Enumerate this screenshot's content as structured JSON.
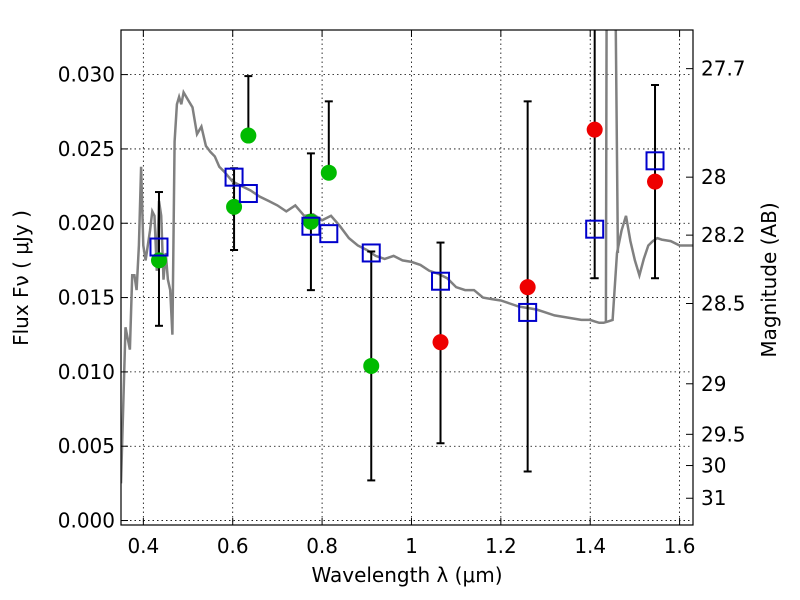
{
  "chart_data": {
    "type": "scatter",
    "xlabel": "Wavelength  λ (μm)",
    "ylabel": "Flux  Fν  ( μJy )",
    "y2label": "Magnitude (AB)",
    "xlim": [
      0.35,
      1.63
    ],
    "ylim": [
      -0.0003,
      0.033
    ],
    "grid": true,
    "x_ticks": [
      0.4,
      0.6,
      0.8,
      1.0,
      1.2,
      1.4,
      1.6
    ],
    "x_tick_labels": [
      "0.4",
      "0.6",
      "0.8",
      "1",
      "1.2",
      "1.4",
      "1.6"
    ],
    "y_ticks": [
      0.0,
      0.005,
      0.01,
      0.015,
      0.02,
      0.025,
      0.03
    ],
    "y_tick_labels": [
      "0.000",
      "0.005",
      "0.010",
      "0.015",
      "0.020",
      "0.025",
      "0.030"
    ],
    "right_ticks": [
      {
        "label": "27.7",
        "flux": 0.0304
      },
      {
        "label": "28",
        "flux": 0.0231
      },
      {
        "label": "28.2",
        "flux": 0.0192
      },
      {
        "label": "28.5",
        "flux": 0.0146
      },
      {
        "label": "29",
        "flux": 0.0092
      },
      {
        "label": "29.5",
        "flux": 0.0058
      },
      {
        "label": "30",
        "flux": 0.0037
      },
      {
        "label": "31",
        "flux": 0.0015
      }
    ],
    "colors": {
      "model": "#808080",
      "green_points": "#00bb00",
      "red_points": "#ee0000",
      "model_photometry": "#0000cc",
      "error_bars": "#000000"
    },
    "series": [
      {
        "kind": "line",
        "x": [
          0.35,
          0.36,
          0.37,
          0.375,
          0.38,
          0.385,
          0.39,
          0.395,
          0.4,
          0.405,
          0.41,
          0.415,
          0.42,
          0.425,
          0.43,
          0.435,
          0.44,
          0.445,
          0.45,
          0.455,
          0.46,
          0.465,
          0.47,
          0.475,
          0.48,
          0.485,
          0.49,
          0.5,
          0.51,
          0.52,
          0.53,
          0.54,
          0.55,
          0.56,
          0.57,
          0.58,
          0.6,
          0.62,
          0.64,
          0.66,
          0.68,
          0.7,
          0.72,
          0.74,
          0.76,
          0.78,
          0.8,
          0.82,
          0.84,
          0.86,
          0.88,
          0.9,
          0.92,
          0.94,
          0.96,
          0.98,
          1.0,
          1.02,
          1.04,
          1.06,
          1.08,
          1.1,
          1.12,
          1.14,
          1.16,
          1.18,
          1.2,
          1.22,
          1.24,
          1.26,
          1.28,
          1.3,
          1.32,
          1.34,
          1.36,
          1.38,
          1.4,
          1.41,
          1.42,
          1.43,
          1.44,
          1.45,
          1.46,
          1.47,
          1.48,
          1.49,
          1.5,
          1.51,
          1.52,
          1.53,
          1.54,
          1.55,
          1.56,
          1.58,
          1.6,
          1.63
        ],
        "y": [
          0.0025,
          0.013,
          0.0115,
          0.0165,
          0.0165,
          0.0155,
          0.0185,
          0.0238,
          0.0185,
          0.0175,
          0.0185,
          0.0195,
          0.0208,
          0.0205,
          0.0168,
          0.0215,
          0.0205,
          0.0162,
          0.018,
          0.0162,
          0.0155,
          0.0125,
          0.0255,
          0.028,
          0.0285,
          0.028,
          0.0288,
          0.0283,
          0.0278,
          0.026,
          0.0265,
          0.0252,
          0.0248,
          0.0245,
          0.0238,
          0.0235,
          0.0228,
          0.0225,
          0.0222,
          0.0218,
          0.0215,
          0.0212,
          0.0208,
          0.0212,
          0.0205,
          0.0206,
          0.0202,
          0.0205,
          0.0198,
          0.019,
          0.0185,
          0.0182,
          0.0178,
          0.0176,
          0.0178,
          0.0175,
          0.0174,
          0.0172,
          0.0168,
          0.0166,
          0.0163,
          0.0157,
          0.0155,
          0.0155,
          0.015,
          0.0149,
          0.0148,
          0.0146,
          0.0144,
          0.0143,
          0.0142,
          0.014,
          0.0138,
          0.0137,
          0.0136,
          0.0135,
          0.0135,
          0.0134,
          0.0133,
          0.0133,
          0.0134,
          0.0135,
          0.018,
          0.0195,
          0.0205,
          0.0188,
          0.0175,
          0.0165,
          0.0176,
          0.0185,
          0.0188,
          0.019,
          0.0189,
          0.0188,
          0.0185,
          0.0185
        ]
      },
      {
        "kind": "points-green",
        "points": [
          {
            "x": 0.435,
            "y": 0.0175,
            "lo": 0.0131,
            "hi": 0.0221
          },
          {
            "x": 0.603,
            "y": 0.0211,
            "lo": 0.0182,
            "hi": 0.0237
          },
          {
            "x": 0.635,
            "y": 0.0259,
            "lo": null,
            "hi": 0.0299
          },
          {
            "x": 0.775,
            "y": 0.0201,
            "lo": 0.0155,
            "hi": 0.0247
          },
          {
            "x": 0.815,
            "y": 0.0234,
            "lo": null,
            "hi": 0.0282
          },
          {
            "x": 0.91,
            "y": 0.0104,
            "lo": 0.0027,
            "hi": 0.0181
          }
        ]
      },
      {
        "kind": "points-red",
        "points": [
          {
            "x": 1.065,
            "y": 0.012,
            "lo": 0.0052,
            "hi": 0.0187
          },
          {
            "x": 1.26,
            "y": 0.0157,
            "lo": 0.0033,
            "hi": 0.0282
          },
          {
            "x": 1.41,
            "y": 0.0263,
            "lo": 0.0163,
            "hi": 0.034
          },
          {
            "x": 1.545,
            "y": 0.0228,
            "lo": 0.0163,
            "hi": 0.0293
          }
        ]
      },
      {
        "kind": "model-photometry",
        "points": [
          {
            "x": 0.435,
            "y": 0.0184
          },
          {
            "x": 0.603,
            "y": 0.0231
          },
          {
            "x": 0.635,
            "y": 0.022
          },
          {
            "x": 0.775,
            "y": 0.0198
          },
          {
            "x": 0.815,
            "y": 0.0193
          },
          {
            "x": 0.91,
            "y": 0.018
          },
          {
            "x": 1.065,
            "y": 0.0161
          },
          {
            "x": 1.26,
            "y": 0.014
          },
          {
            "x": 1.41,
            "y": 0.0196
          },
          {
            "x": 1.545,
            "y": 0.0242
          }
        ]
      }
    ]
  }
}
